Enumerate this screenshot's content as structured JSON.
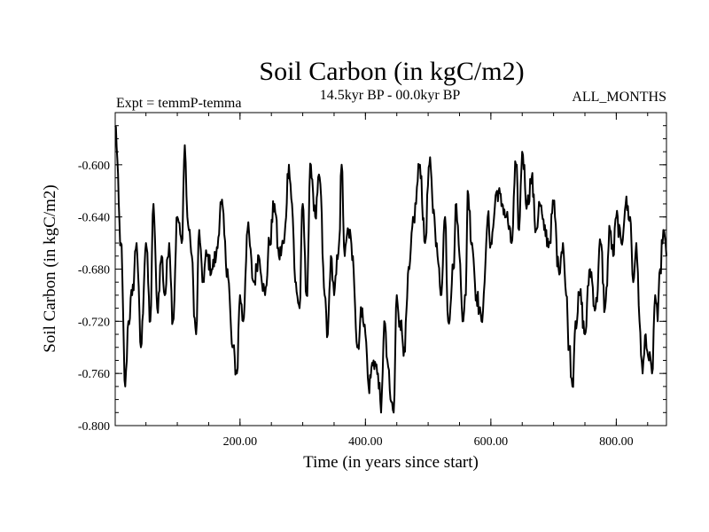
{
  "chart_data": {
    "type": "line",
    "title": "Soil Carbon (in kgC/m2)",
    "subtitle_left": "Expt = temmP-temma",
    "subtitle_center": "14.5kyr BP - 00.0kyr BP",
    "subtitle_right": "ALL_MONTHS",
    "xlabel": "Time (in years since start)",
    "ylabel": "Soil Carbon (in kgC/m2)",
    "xlim": [
      1,
      880
    ],
    "ylim": [
      -0.8,
      -0.56
    ],
    "x_ticks": [
      200,
      400,
      600,
      800
    ],
    "x_tick_labels": [
      "200.00",
      "400.00",
      "600.00",
      "800.00"
    ],
    "y_ticks": [
      -0.8,
      -0.76,
      -0.72,
      -0.68,
      -0.64,
      -0.6
    ],
    "y_tick_labels": [
      "-0.800",
      "-0.760",
      "-0.720",
      "-0.680",
      "-0.640",
      "-0.600"
    ],
    "grid": false,
    "legend": "none",
    "series": [
      {
        "name": "Soil Carbon",
        "color": "#000000",
        "x": [
          1,
          10,
          17,
          22,
          28,
          35,
          42,
          50,
          57,
          62,
          68,
          75,
          80,
          87,
          93,
          100,
          107,
          112,
          116,
          121,
          130,
          135,
          140,
          147,
          155,
          162,
          170,
          180,
          188,
          195,
          200,
          205,
          212,
          222,
          230,
          240,
          247,
          255,
          262,
          270,
          278,
          283,
          288,
          295,
          300,
          306,
          313,
          320,
          327,
          335,
          340,
          345,
          350,
          358,
          362,
          367,
          373,
          380,
          387,
          395,
          400,
          405,
          413,
          420,
          425,
          430,
          435,
          440,
          445,
          450,
          455,
          462,
          470,
          477,
          487,
          495,
          502,
          510,
          515,
          520,
          527,
          532,
          540,
          545,
          550,
          556,
          560,
          563,
          570,
          577,
          585,
          590,
          595,
          600,
          610,
          618,
          625,
          633,
          640,
          645,
          650,
          658,
          665,
          672,
          678,
          685,
          693,
          700,
          708,
          715,
          720,
          725,
          730,
          735,
          742,
          750,
          758,
          767,
          775,
          782,
          790,
          795,
          800,
          808,
          815,
          822,
          827,
          832,
          837,
          842,
          847,
          852,
          857,
          862,
          866,
          870,
          875,
          880
        ],
        "values": [
          -0.57,
          -0.66,
          -0.77,
          -0.72,
          -0.7,
          -0.66,
          -0.74,
          -0.66,
          -0.72,
          -0.63,
          -0.71,
          -0.67,
          -0.7,
          -0.66,
          -0.72,
          -0.64,
          -0.66,
          -0.585,
          -0.64,
          -0.66,
          -0.73,
          -0.65,
          -0.69,
          -0.67,
          -0.68,
          -0.67,
          -0.63,
          -0.68,
          -0.74,
          -0.76,
          -0.7,
          -0.72,
          -0.65,
          -0.69,
          -0.67,
          -0.7,
          -0.66,
          -0.63,
          -0.67,
          -0.66,
          -0.6,
          -0.63,
          -0.69,
          -0.71,
          -0.63,
          -0.7,
          -0.6,
          -0.64,
          -0.61,
          -0.7,
          -0.73,
          -0.67,
          -0.7,
          -0.66,
          -0.6,
          -0.67,
          -0.65,
          -0.67,
          -0.74,
          -0.71,
          -0.73,
          -0.77,
          -0.75,
          -0.76,
          -0.79,
          -0.72,
          -0.75,
          -0.78,
          -0.79,
          -0.7,
          -0.72,
          -0.74,
          -0.68,
          -0.64,
          -0.6,
          -0.66,
          -0.6,
          -0.64,
          -0.67,
          -0.7,
          -0.64,
          -0.72,
          -0.68,
          -0.63,
          -0.67,
          -0.72,
          -0.7,
          -0.62,
          -0.66,
          -0.7,
          -0.72,
          -0.69,
          -0.64,
          -0.66,
          -0.62,
          -0.63,
          -0.64,
          -0.66,
          -0.6,
          -0.65,
          -0.59,
          -0.63,
          -0.61,
          -0.65,
          -0.63,
          -0.65,
          -0.66,
          -0.63,
          -0.68,
          -0.66,
          -0.7,
          -0.74,
          -0.77,
          -0.72,
          -0.7,
          -0.73,
          -0.68,
          -0.71,
          -0.66,
          -0.71,
          -0.65,
          -0.67,
          -0.64,
          -0.66,
          -0.63,
          -0.64,
          -0.69,
          -0.66,
          -0.72,
          -0.76,
          -0.73,
          -0.75,
          -0.76,
          -0.7,
          -0.72,
          -0.68,
          -0.65,
          -0.67
        ]
      }
    ]
  }
}
